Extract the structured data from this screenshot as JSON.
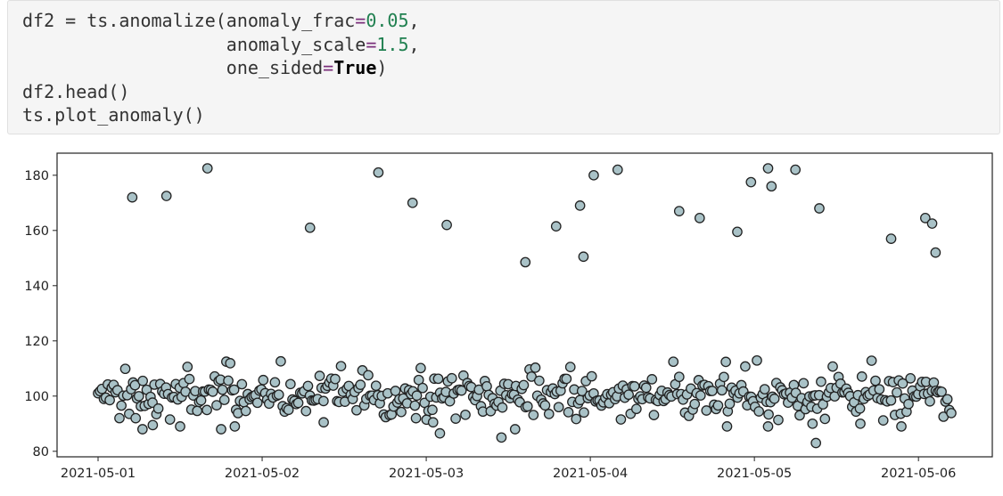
{
  "code": {
    "line1_a": "df2 = ts.anomalize(anomaly_frac",
    "line1_eq": "=",
    "line1_num": "0.05",
    "line1_end": ",",
    "line2_pad": "                   ",
    "line2_a": "anomaly_scale",
    "line2_eq": "=",
    "line2_num": "1.5",
    "line2_end": ",",
    "line3_pad": "                   ",
    "line3_a": "one_sided",
    "line3_eq": "=",
    "line3_kw": "True",
    "line3_end": ")",
    "line4": "df2.head()",
    "line5": "ts.plot_anomaly()"
  },
  "chart_data": {
    "type": "scatter",
    "title": "",
    "xlabel": "",
    "ylabel": "",
    "x_range_days": [
      -0.25,
      5.45
    ],
    "ylim": [
      78,
      188
    ],
    "yticks": [
      80,
      100,
      120,
      140,
      160,
      180
    ],
    "ytick_labels": [
      "80",
      "100",
      "120",
      "140",
      "160",
      "180"
    ],
    "xticks": [
      0,
      1,
      2,
      3,
      4,
      5
    ],
    "xtick_labels": [
      "2021-05-01",
      "2021-05-02",
      "2021-05-03",
      "2021-05-04",
      "2021-05-05",
      "2021-05-06"
    ],
    "grid": false,
    "marker": {
      "fill": "#a9c2c7",
      "edge": "#222222"
    },
    "anomalies": [
      {
        "x": "2021-05-01 05:00",
        "y": 172
      },
      {
        "x": "2021-05-01 10:00",
        "y": 172.5
      },
      {
        "x": "2021-05-01 16:00",
        "y": 182.5
      },
      {
        "x": "2021-05-02 07:00",
        "y": 161
      },
      {
        "x": "2021-05-02 17:00",
        "y": 181
      },
      {
        "x": "2021-05-02 22:00",
        "y": 170
      },
      {
        "x": "2021-05-03 03:00",
        "y": 162
      },
      {
        "x": "2021-05-03 14:30",
        "y": 148.5
      },
      {
        "x": "2021-05-03 19:00",
        "y": 161.5
      },
      {
        "x": "2021-05-03 22:30",
        "y": 169
      },
      {
        "x": "2021-05-03 23:00",
        "y": 150.5
      },
      {
        "x": "2021-05-04 00:30",
        "y": 180
      },
      {
        "x": "2021-05-04 04:00",
        "y": 182
      },
      {
        "x": "2021-05-04 13:00",
        "y": 167
      },
      {
        "x": "2021-05-04 16:00",
        "y": 164.5
      },
      {
        "x": "2021-05-04 21:30",
        "y": 159.5
      },
      {
        "x": "2021-05-04 23:30",
        "y": 177.5
      },
      {
        "x": "2021-05-05 02:00",
        "y": 182.5
      },
      {
        "x": "2021-05-05 02:30",
        "y": 176
      },
      {
        "x": "2021-05-05 06:00",
        "y": 182
      },
      {
        "x": "2021-05-05 09:30",
        "y": 168
      },
      {
        "x": "2021-05-05 20:00",
        "y": 157
      },
      {
        "x": "2021-05-06 01:00",
        "y": 164.5
      },
      {
        "x": "2021-05-06 02:00",
        "y": 162.5
      },
      {
        "x": "2021-05-06 02:30",
        "y": 152
      }
    ],
    "low_points": [
      {
        "x": "2021-05-01 05:30",
        "y": 92
      },
      {
        "x": "2021-05-01 06:30",
        "y": 88
      },
      {
        "x": "2021-05-01 08:00",
        "y": 89.5
      },
      {
        "x": "2021-05-01 12:00",
        "y": 89
      },
      {
        "x": "2021-05-01 18:00",
        "y": 88
      },
      {
        "x": "2021-05-01 20:00",
        "y": 89
      },
      {
        "x": "2021-05-02 09:00",
        "y": 90.5
      },
      {
        "x": "2021-05-02 22:30",
        "y": 92
      },
      {
        "x": "2021-05-03 01:00",
        "y": 90.5
      },
      {
        "x": "2021-05-03 02:00",
        "y": 86.5
      },
      {
        "x": "2021-05-03 11:00",
        "y": 85
      },
      {
        "x": "2021-05-03 13:00",
        "y": 88
      },
      {
        "x": "2021-05-04 20:00",
        "y": 89
      },
      {
        "x": "2021-05-05 02:00",
        "y": 89
      },
      {
        "x": "2021-05-05 08:30",
        "y": 90
      },
      {
        "x": "2021-05-05 09:00",
        "y": 83
      },
      {
        "x": "2021-05-05 15:30",
        "y": 90
      },
      {
        "x": "2021-05-05 21:30",
        "y": 89
      }
    ],
    "normal_range": [
      91,
      113
    ],
    "normal_points_note": "about 430 further points fall within the normal band between roughly 91 and 113"
  }
}
